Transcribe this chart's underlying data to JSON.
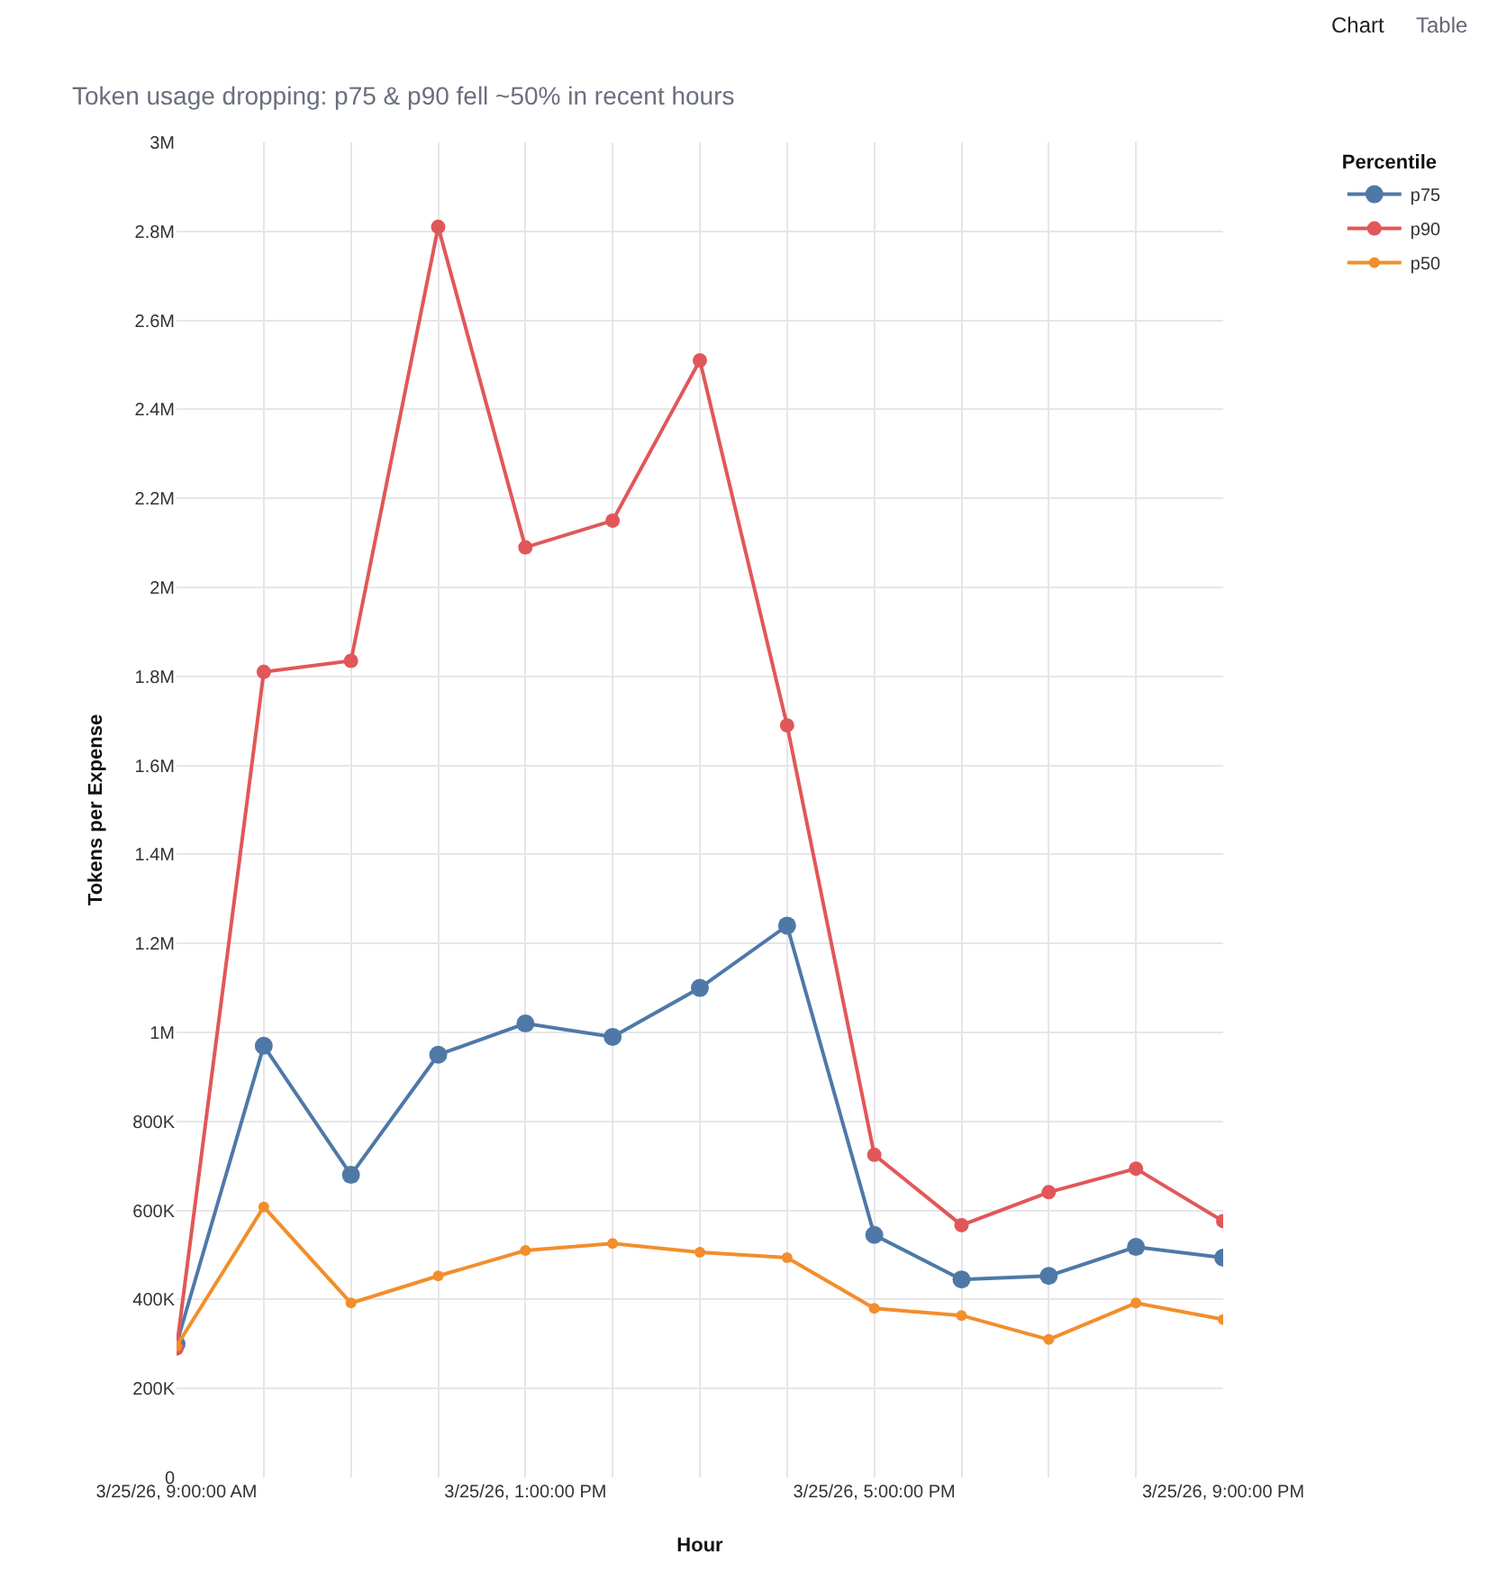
{
  "chart_data": {
    "type": "line",
    "title": "Token usage dropping: p75 & p90 fell ~50% in recent hours",
    "xlabel": "Hour",
    "ylabel": "Tokens per Expense",
    "legend_title": "Percentile",
    "x": [
      "--03-25T09:00",
      "--03-25T10:00",
      "--03-25T11:00",
      "--03-25T12:00",
      "--03-25T13:00",
      "--03-25T14:00",
      "--03-25T15:00",
      "--03-25T16:00",
      "--03-25T17:00",
      "--03-25T18:00",
      "--03-25T19:00",
      "--03-25T20:00",
      "--03-25T21:00"
    ],
    "series": [
      {
        "name": "p75",
        "color": "#4e79a7",
        "values": [
          300000,
          970000,
          680000,
          950000,
          1020000,
          990000,
          1100000,
          1240000,
          545000,
          445000,
          453000,
          518000,
          494000
        ]
      },
      {
        "name": "p90",
        "color": "#e15759",
        "values": [
          290000,
          1810000,
          1835000,
          2810000,
          2090000,
          2150000,
          2510000,
          1690000,
          725000,
          567000,
          641000,
          694000,
          576000
        ]
      },
      {
        "name": "p50",
        "color": "#f28e2b",
        "values": [
          295000,
          608000,
          392000,
          453000,
          510000,
          526000,
          506000,
          494000,
          380000,
          364000,
          310000,
          392000,
          355000
        ]
      }
    ],
    "xlim": [
      "--03-25T09:00",
      "--03-25T21:00"
    ],
    "xticks": [
      {
        "value": "--03-25T09:00",
        "label": "3/25/26, 9:00:00 AM"
      },
      {
        "value": "--03-25T10:00",
        "label": null
      },
      {
        "value": "--03-25T11:00",
        "label": null
      },
      {
        "value": "--03-25T12:00",
        "label": null
      },
      {
        "value": "--03-25T13:00",
        "label": "3/25/26, 1:00:00 PM"
      },
      {
        "value": "--03-25T14:00",
        "label": null
      },
      {
        "value": "--03-25T15:00",
        "label": null
      },
      {
        "value": "--03-25T16:00",
        "label": null
      },
      {
        "value": "--03-25T17:00",
        "label": "3/25/26, 5:00:00 PM"
      },
      {
        "value": "--03-25T18:00",
        "label": null
      },
      {
        "value": "--03-25T19:00",
        "label": null
      },
      {
        "value": "--03-25T20:00",
        "label": null
      },
      {
        "value": "--03-25T21:00",
        "label": "3/25/26, 9:00:00 PM"
      }
    ],
    "ylim": [
      0,
      3000000
    ],
    "yticks": [
      0,
      {
        "value": 200000,
        "label": "200K"
      },
      {
        "value": 400000,
        "label": "400K"
      },
      {
        "value": 600000,
        "label": "600K"
      },
      {
        "value": 800000,
        "label": "800K"
      },
      {
        "value": 1000000,
        "label": "1M"
      },
      {
        "value": 1200000,
        "label": "1.2M"
      },
      {
        "value": 1400000,
        "label": "1.4M"
      },
      {
        "value": 1600000,
        "label": "1.6M"
      },
      {
        "value": 1800000,
        "label": "1.8M"
      },
      {
        "value": 2000000,
        "label": "2M"
      },
      {
        "value": 2200000,
        "label": "2.2M"
      },
      {
        "value": 2400000,
        "label": "2.4M"
      },
      {
        "value": 2600000,
        "label": "2.6M"
      },
      {
        "value": 2800000,
        "label": "2.8M"
      },
      {
        "value": 3000000,
        "label": "3M"
      }
    ],
    "grid": true,
    "legend": "top right",
    "marker": "circle",
    "line_style": "solid",
    "annotations": [
      "Chart",
      "Table"
    ]
  }
}
